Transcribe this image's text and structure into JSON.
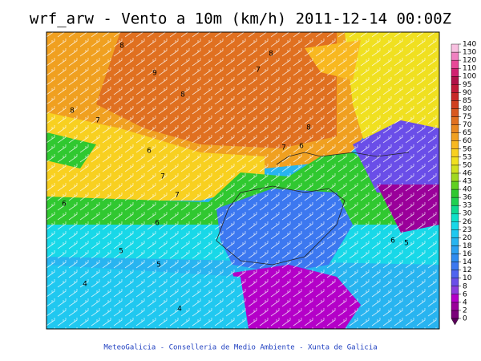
{
  "title": "wrf_arw - Vento a 10m (km/h) 2011-12-14 00:00Z",
  "footer": "MeteoGalicia - Conselleria de Medio Ambiente - Xunta de Galicia",
  "colorbar": {
    "levels": [
      0,
      2,
      4,
      6,
      8,
      10,
      12,
      14,
      16,
      18,
      20,
      23,
      26,
      30,
      33,
      36,
      40,
      43,
      46,
      50,
      53,
      56,
      60,
      65,
      70,
      75,
      80,
      85,
      90,
      95,
      100,
      110,
      120,
      130,
      140
    ],
    "colors": [
      "#7a007a",
      "#9a009a",
      "#b400c8",
      "#8c3cdc",
      "#6a4ee8",
      "#4f64f0",
      "#3c78f0",
      "#2f8cf0",
      "#2ca0f0",
      "#28b4f0",
      "#20c8f0",
      "#18d8e8",
      "#10e0c8",
      "#10d890",
      "#20d050",
      "#30c830",
      "#60d020",
      "#a0d820",
      "#d0e020",
      "#f0e020",
      "#f8d020",
      "#f8b820",
      "#f0a020",
      "#e88820",
      "#e07020",
      "#d85820",
      "#d04020",
      "#c82828",
      "#c01838",
      "#b01048",
      "#d02070",
      "#e84898",
      "#f080c0",
      "#f8c0e0"
    ]
  },
  "contour_labels": [
    "8",
    "8",
    "7",
    "9",
    "8",
    "8",
    "7",
    "8",
    "7",
    "6",
    "6",
    "7",
    "7",
    "6",
    "6",
    "5",
    "5",
    "4",
    "4",
    "6",
    "5"
  ]
}
